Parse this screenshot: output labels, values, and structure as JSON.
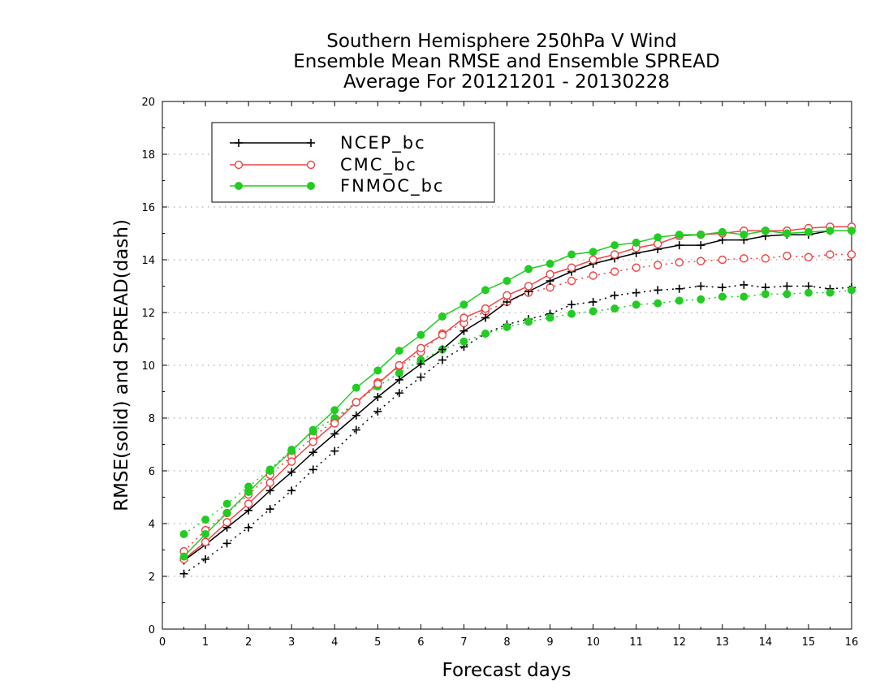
{
  "chart_data": {
    "type": "line",
    "title": [
      "Southern Hemisphere 250hPa V Wind",
      "Ensemble Mean RMSE and Ensemble SPREAD",
      "Average For 20121201 - 20130228"
    ],
    "xlabel": "Forecast days",
    "ylabel": "RMSE(solid) and SPREAD(dash)",
    "xlim": [
      0,
      16
    ],
    "ylim": [
      0,
      20
    ],
    "xticks": [
      0,
      1,
      2,
      3,
      4,
      5,
      6,
      7,
      8,
      9,
      10,
      11,
      12,
      13,
      14,
      15,
      16
    ],
    "yticks": [
      0,
      2,
      4,
      6,
      8,
      10,
      12,
      14,
      16,
      18,
      20
    ],
    "grid": "horizontal dotted",
    "legend_position": "top-left",
    "x": [
      0.5,
      1,
      1.5,
      2,
      2.5,
      3,
      3.5,
      4,
      4.5,
      5,
      5.5,
      6,
      6.5,
      7,
      7.5,
      8,
      8.5,
      9,
      9.5,
      10,
      10.5,
      11,
      11.5,
      12,
      12.5,
      13,
      13.5,
      14,
      14.5,
      15,
      15.5,
      16
    ],
    "series": [
      {
        "name": "NCEP_bc",
        "color": "#000000",
        "marker": "plus",
        "rmse": [
          2.6,
          3.2,
          3.85,
          4.5,
          5.25,
          5.95,
          6.7,
          7.4,
          8.1,
          8.8,
          9.45,
          10.05,
          10.6,
          11.3,
          11.8,
          12.4,
          12.8,
          13.2,
          13.55,
          13.85,
          14.05,
          14.25,
          14.4,
          14.55,
          14.55,
          14.75,
          14.75,
          14.9,
          14.95,
          14.95,
          15.1,
          15.1
        ],
        "spread": [
          2.1,
          2.65,
          3.25,
          3.85,
          4.55,
          5.25,
          6.05,
          6.75,
          7.55,
          8.25,
          8.95,
          9.55,
          10.2,
          10.7,
          11.2,
          11.55,
          11.75,
          11.95,
          12.3,
          12.4,
          12.65,
          12.75,
          12.85,
          12.9,
          13.0,
          12.95,
          13.05,
          12.95,
          13.0,
          13.0,
          12.9,
          12.95
        ]
      },
      {
        "name": "CMC_bc",
        "color": "#ee4444",
        "marker": "open-circle",
        "rmse": [
          2.65,
          3.3,
          4.05,
          4.75,
          5.55,
          6.35,
          7.1,
          7.8,
          8.6,
          9.3,
          10.0,
          10.65,
          11.15,
          11.8,
          12.15,
          12.65,
          13.0,
          13.45,
          13.7,
          14.0,
          14.2,
          14.45,
          14.6,
          14.9,
          14.95,
          15.0,
          15.1,
          15.1,
          15.1,
          15.2,
          15.25,
          15.25
        ],
        "spread": [
          2.95,
          3.75,
          4.4,
          5.1,
          5.85,
          6.55,
          7.3,
          7.9,
          8.6,
          9.35,
          9.95,
          10.5,
          11.2,
          11.6,
          12.05,
          12.4,
          12.75,
          12.95,
          13.2,
          13.4,
          13.55,
          13.7,
          13.8,
          13.9,
          13.95,
          14.0,
          14.05,
          14.05,
          14.15,
          14.1,
          14.2,
          14.2
        ]
      },
      {
        "name": "FNMOC_bc",
        "color": "#22cc22",
        "marker": "filled-circle",
        "rmse": [
          2.75,
          3.6,
          4.4,
          5.2,
          6.0,
          6.75,
          7.55,
          8.3,
          9.15,
          9.8,
          10.55,
          11.15,
          11.85,
          12.3,
          12.85,
          13.2,
          13.65,
          13.85,
          14.2,
          14.3,
          14.55,
          14.65,
          14.85,
          14.95,
          14.95,
          15.05,
          14.95,
          15.1,
          15.0,
          15.05,
          15.1,
          15.1
        ],
        "spread": [
          3.6,
          4.15,
          4.75,
          5.4,
          6.05,
          6.8,
          7.5,
          8.0,
          8.6,
          9.2,
          9.7,
          10.2,
          10.6,
          10.9,
          11.2,
          11.45,
          11.65,
          11.8,
          11.95,
          12.05,
          12.15,
          12.3,
          12.35,
          12.45,
          12.5,
          12.6,
          12.6,
          12.7,
          12.7,
          12.75,
          12.75,
          12.85
        ]
      }
    ]
  }
}
